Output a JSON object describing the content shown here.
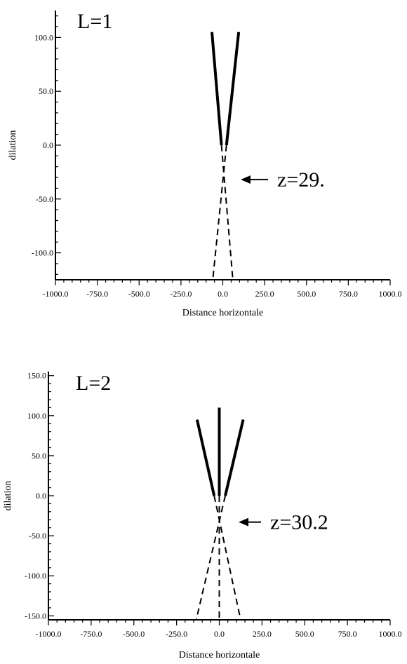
{
  "chart_data": [
    {
      "type": "line",
      "panel_label": "L=1",
      "xlabel": "Distance horizontale",
      "ylabel": "dilation",
      "xlim": [
        -1000,
        1000
      ],
      "ylim": [
        -125,
        125
      ],
      "xticks": [
        "-1000.0",
        "-750.0",
        "-500.0",
        "-250.0",
        "0.0",
        "250.0",
        "500.0",
        "750.0",
        "1000.0"
      ],
      "yticks": [
        "100.0",
        "50.0",
        "0.0",
        "-50.0",
        "-100.0"
      ],
      "grid": false,
      "annotation": {
        "text": "z=29.",
        "point": [
          0,
          -32
        ]
      },
      "series": [
        {
          "style": "solid",
          "points": [
            [
              -65,
              105
            ],
            [
              -8,
              0
            ]
          ]
        },
        {
          "style": "solid",
          "points": [
            [
              95,
              105
            ],
            [
              22,
              0
            ]
          ]
        },
        {
          "style": "dashed",
          "points": [
            [
              -8,
              0
            ],
            [
              60,
              -125
            ]
          ]
        },
        {
          "style": "dashed",
          "points": [
            [
              22,
              0
            ],
            [
              -60,
              -125
            ]
          ]
        }
      ]
    },
    {
      "type": "line",
      "panel_label": "L=2",
      "xlabel": "Distance horizontale",
      "ylabel": "dilation",
      "xlim": [
        -1000,
        1000
      ],
      "ylim": [
        -155,
        155
      ],
      "xticks": [
        "-1000.0",
        "-750.0",
        "-500.0",
        "-250.0",
        "0.0",
        "250.0",
        "500.0",
        "750.0",
        "1000.0"
      ],
      "yticks": [
        "150.0",
        "100.0",
        "50.0",
        "0.0",
        "-50.0",
        "-100.0",
        "-150.0"
      ],
      "grid": false,
      "annotation": {
        "text": "z=30.2",
        "point": [
          0,
          -33
        ]
      },
      "series": [
        {
          "style": "solid",
          "points": [
            [
              -130,
              95
            ],
            [
              -30,
              0
            ]
          ]
        },
        {
          "style": "solid",
          "points": [
            [
              140,
              95
            ],
            [
              35,
              0
            ]
          ]
        },
        {
          "style": "solid",
          "points": [
            [
              0,
              110
            ],
            [
              0,
              0
            ]
          ]
        },
        {
          "style": "dashed",
          "points": [
            [
              -30,
              0
            ],
            [
              125,
              -155
            ]
          ]
        },
        {
          "style": "dashed",
          "points": [
            [
              35,
              0
            ],
            [
              -135,
              -155
            ]
          ]
        },
        {
          "style": "dashed",
          "points": [
            [
              0,
              0
            ],
            [
              0,
              -155
            ]
          ]
        }
      ]
    }
  ]
}
